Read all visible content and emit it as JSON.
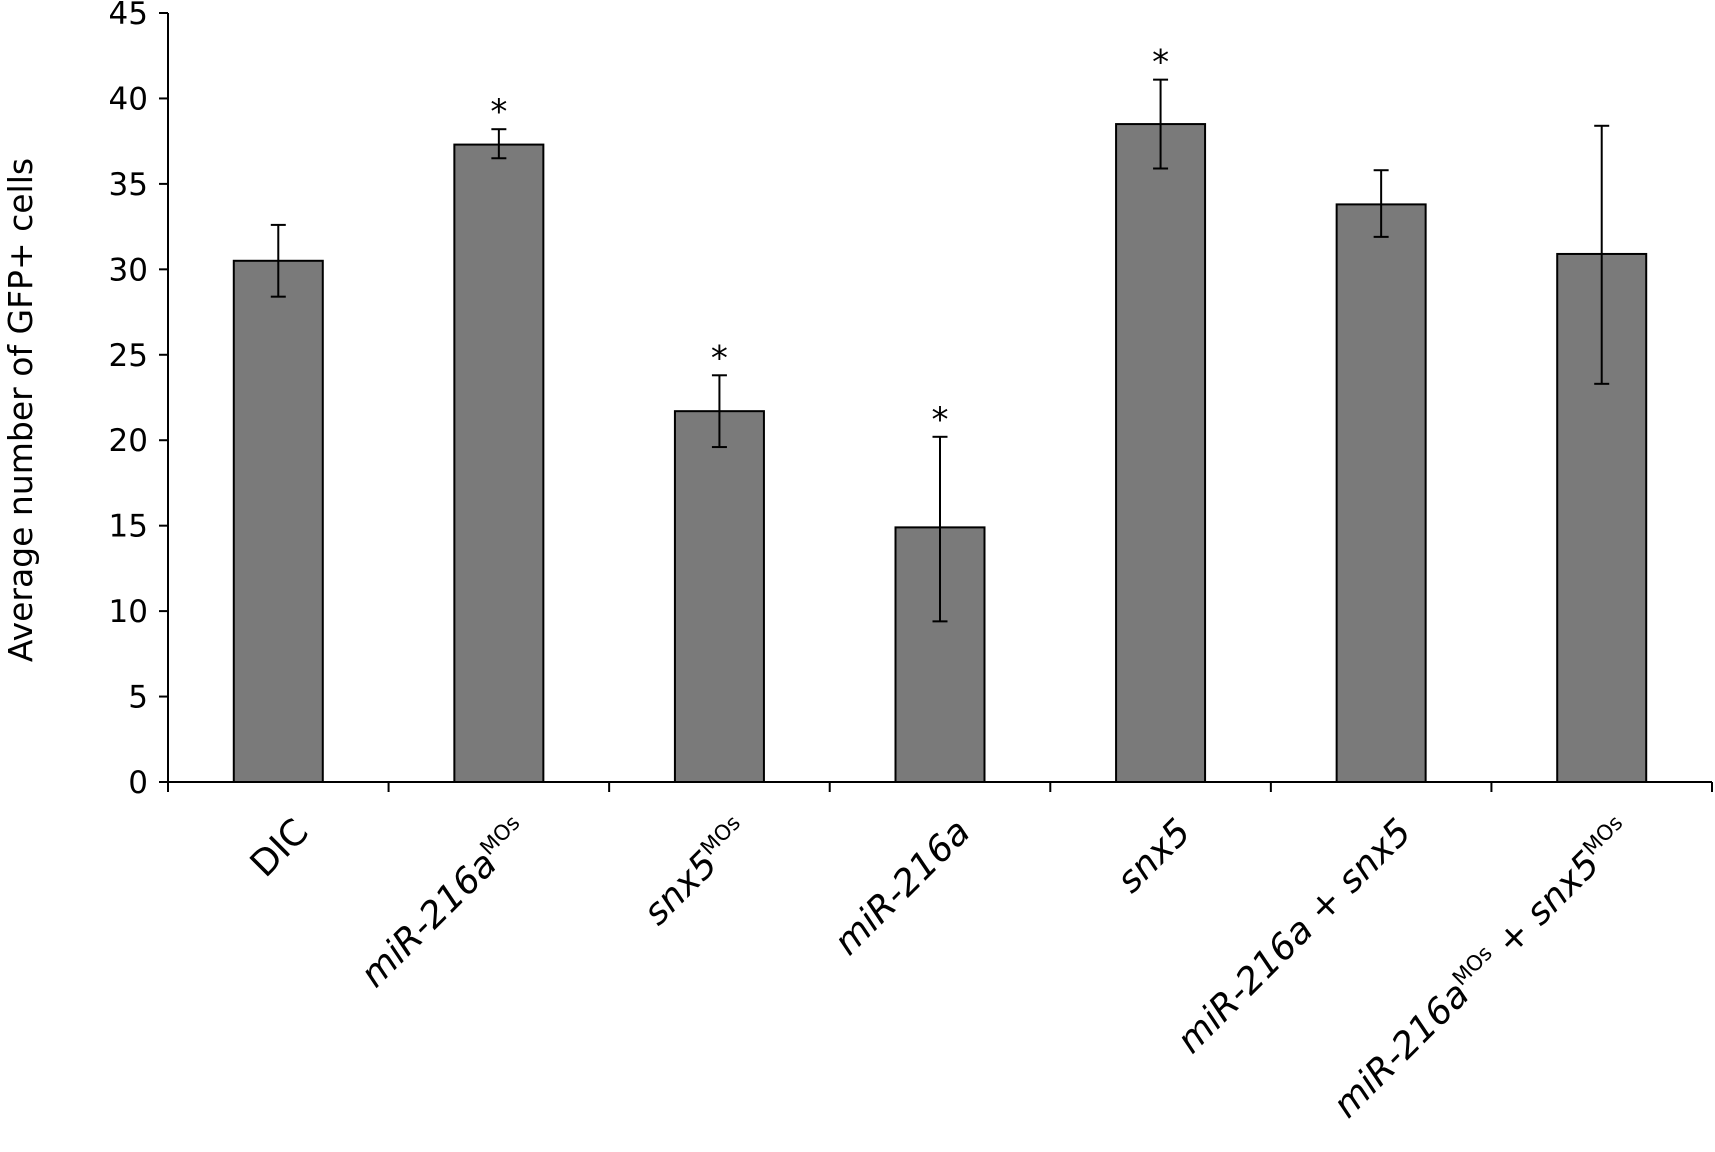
{
  "chart_data": {
    "type": "bar",
    "ylabel": "Average number of GFP+ cells",
    "xlabel": "",
    "ylim": [
      0,
      45
    ],
    "yticks": [
      0,
      5,
      10,
      15,
      20,
      25,
      30,
      35,
      40,
      45
    ],
    "grid": false,
    "bar_color": "#7a7a7a",
    "categories": [
      {
        "parts": [
          {
            "text": "DIC"
          }
        ]
      },
      {
        "parts": [
          {
            "text": "miR-216a",
            "italic": true
          },
          {
            "text": "MOs",
            "sup": true
          }
        ]
      },
      {
        "parts": [
          {
            "text": "snx5",
            "italic": true
          },
          {
            "text": "MOs",
            "sup": true
          }
        ]
      },
      {
        "parts": [
          {
            "text": "miR-216a",
            "italic": true
          }
        ]
      },
      {
        "parts": [
          {
            "text": "snx5",
            "italic": true
          }
        ]
      },
      {
        "parts": [
          {
            "text": "miR-216a",
            "italic": true
          },
          {
            "text": " + "
          },
          {
            "text": "snx5",
            "italic": true
          }
        ]
      },
      {
        "parts": [
          {
            "text": "miR-216a",
            "italic": true
          },
          {
            "text": "MOs",
            "sup": true
          },
          {
            "text": " + "
          },
          {
            "text": "snx5",
            "italic": true
          },
          {
            "text": "MOs",
            "sup": true
          }
        ]
      }
    ],
    "values": [
      30.5,
      37.3,
      21.7,
      14.9,
      38.5,
      33.8,
      30.9
    ],
    "error_low": [
      28.4,
      36.5,
      19.6,
      9.4,
      35.9,
      31.9,
      23.3
    ],
    "error_high": [
      32.6,
      38.2,
      23.8,
      20.2,
      41.1,
      35.8,
      38.4
    ],
    "significance": [
      "",
      "*",
      "*",
      "*",
      "*",
      "",
      ""
    ]
  }
}
